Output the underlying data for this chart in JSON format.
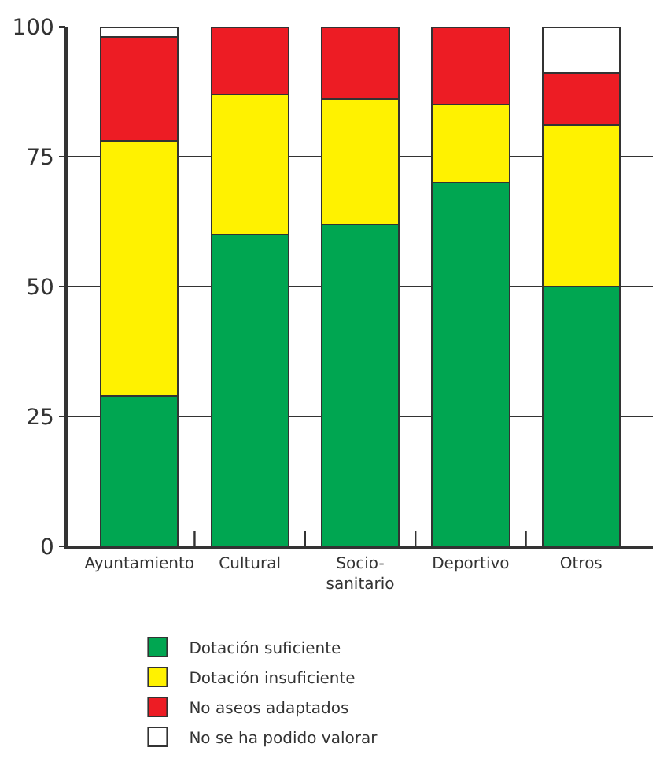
{
  "chart_data": {
    "type": "bar",
    "stacked": true,
    "categories": [
      "Ayuntamiento",
      "Cultural",
      "Socio-\nsanitario",
      "Deportivo",
      "Otros"
    ],
    "series": [
      {
        "name": "Dotación suficiente",
        "color": "#00a651",
        "values": [
          29,
          60,
          62,
          70,
          50
        ]
      },
      {
        "name": "Dotación insuficiente",
        "color": "#fff200",
        "values": [
          49,
          27,
          24,
          15,
          31
        ]
      },
      {
        "name": "No aseos adaptados",
        "color": "#ed1c24",
        "values": [
          20,
          13,
          14,
          15,
          10
        ]
      },
      {
        "name": "No se ha podido valorar",
        "color": "#ffffff",
        "values": [
          2,
          0,
          0,
          0,
          9
        ]
      }
    ],
    "ylim": [
      0,
      100
    ],
    "yticks": [
      0,
      25,
      50,
      75,
      100
    ],
    "grid": "y",
    "legend": "bottom"
  }
}
